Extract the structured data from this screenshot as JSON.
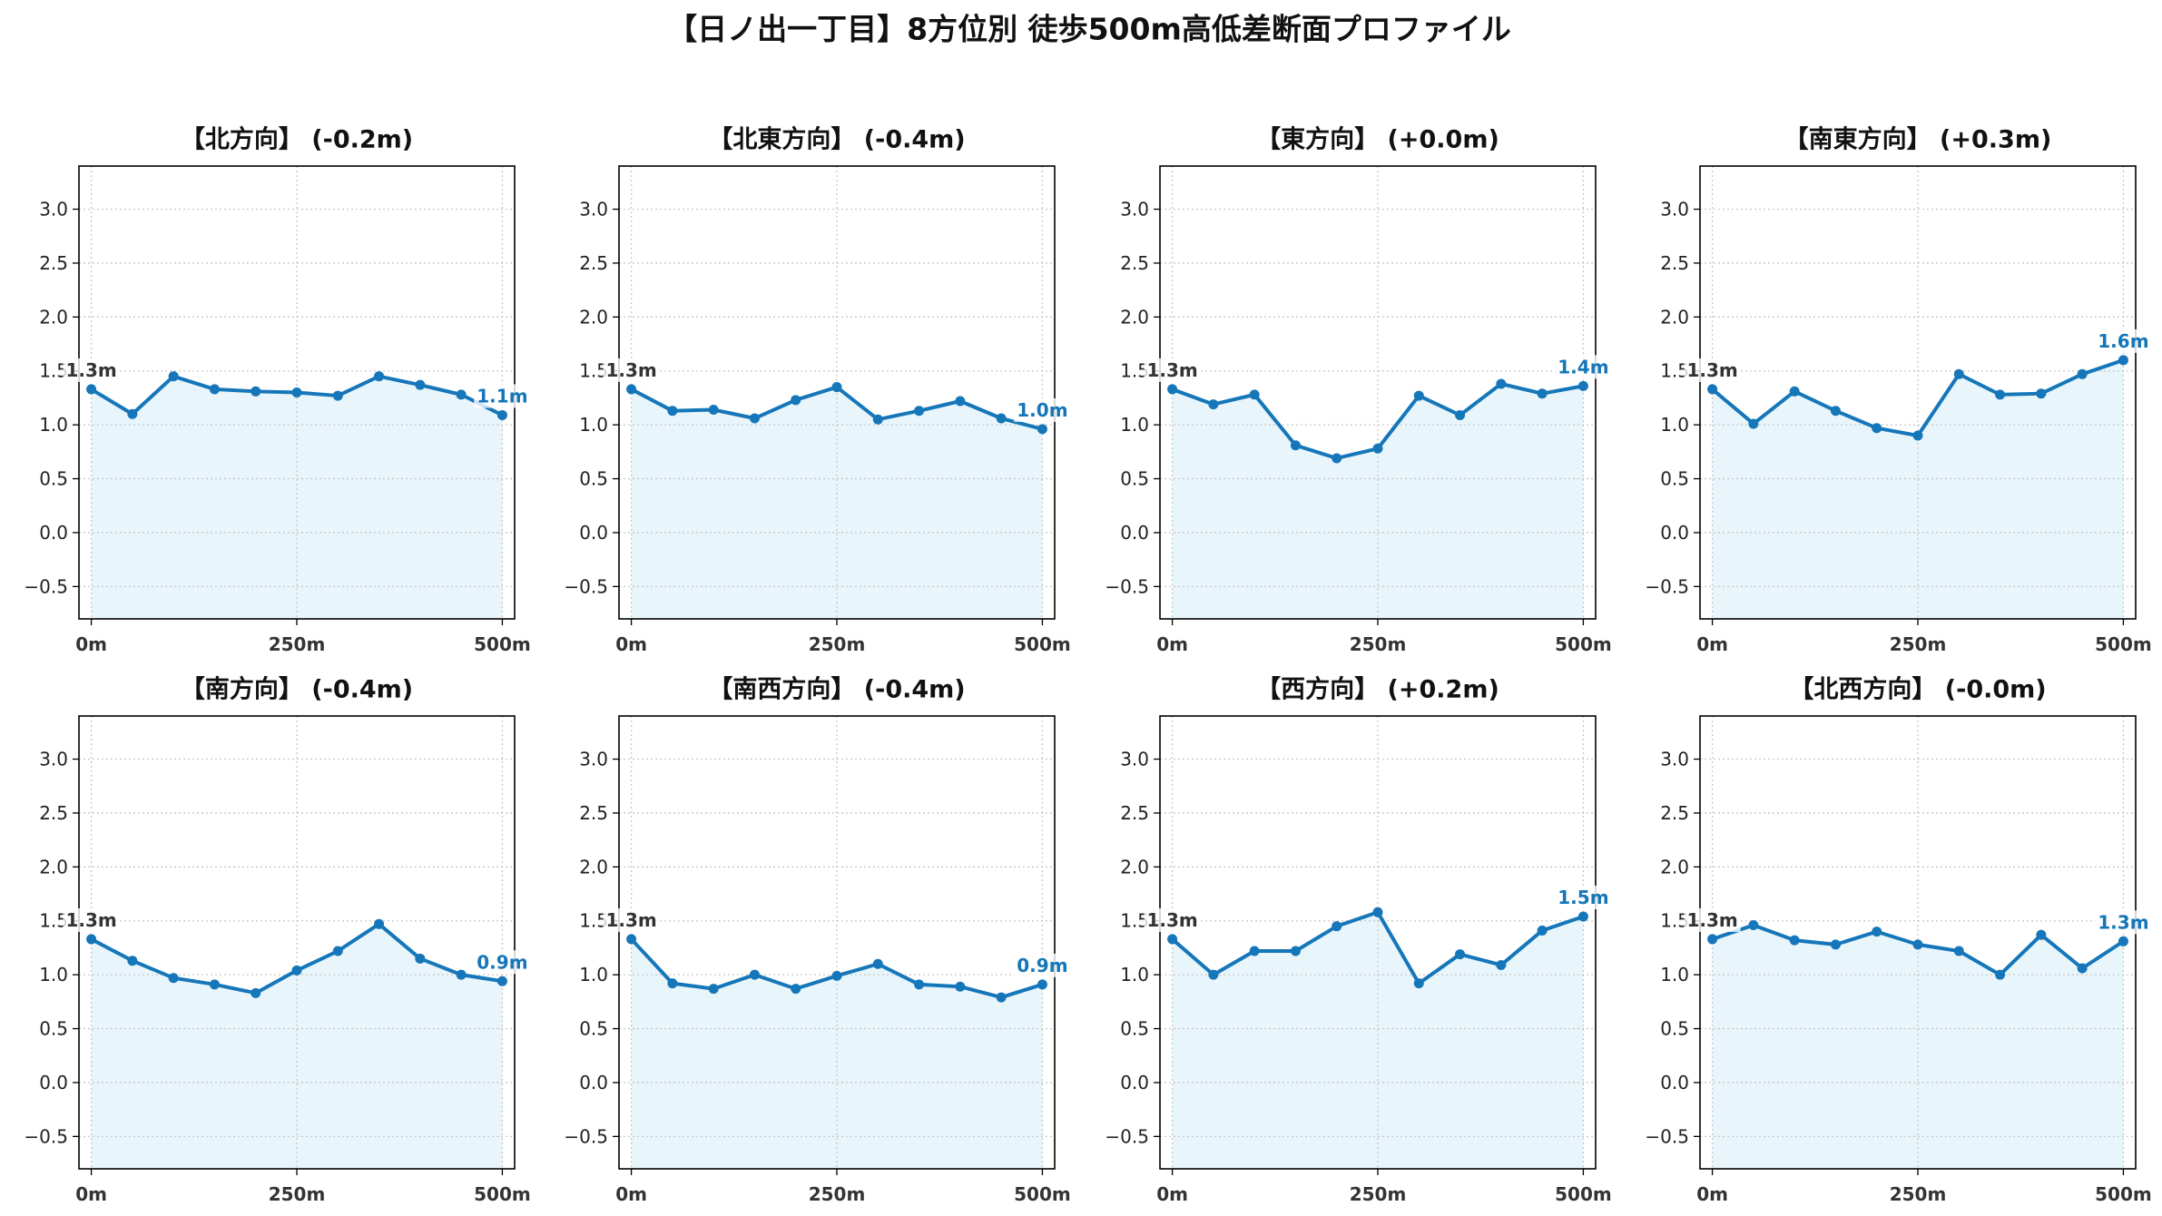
{
  "figure": {
    "title": "【日ノ出一丁目】8方位別 徒歩500m高低差断面プロファイル"
  },
  "colors": {
    "line": "#1576b9",
    "fill": "#e8f5fb",
    "start_label": "#333333",
    "end_label": "#1576b9",
    "grid": "#c8c8c8",
    "frame": "#000000"
  },
  "chart_data": [
    {
      "type": "line",
      "title": "【北方向】 (-0.2m)",
      "x": [
        0,
        50,
        100,
        150,
        200,
        250,
        300,
        350,
        400,
        450,
        500
      ],
      "y": [
        1.33,
        1.1,
        1.45,
        1.33,
        1.31,
        1.3,
        1.27,
        1.45,
        1.37,
        1.28,
        1.09
      ],
      "xlim": [
        -15,
        515
      ],
      "ylim": [
        -0.8,
        3.4
      ],
      "xticks": [
        0,
        250,
        500
      ],
      "xtick_labels": [
        "0m",
        "250m",
        "500m"
      ],
      "yticks": [
        -0.5,
        0,
        0.5,
        1,
        1.5,
        2,
        2.5,
        3
      ],
      "ytick_labels": [
        "−0.5",
        "0.0",
        "0.5",
        "1.0",
        "1.5",
        "2.0",
        "2.5",
        "3.0"
      ],
      "grid": true,
      "start_label": "1.3m",
      "end_label": "1.1m"
    },
    {
      "type": "line",
      "title": "【北東方向】 (-0.4m)",
      "x": [
        0,
        50,
        100,
        150,
        200,
        250,
        300,
        350,
        400,
        450,
        500
      ],
      "y": [
        1.33,
        1.13,
        1.14,
        1.06,
        1.23,
        1.35,
        1.05,
        1.13,
        1.22,
        1.06,
        0.96
      ],
      "xlim": [
        -15,
        515
      ],
      "ylim": [
        -0.8,
        3.4
      ],
      "xticks": [
        0,
        250,
        500
      ],
      "xtick_labels": [
        "0m",
        "250m",
        "500m"
      ],
      "yticks": [
        -0.5,
        0,
        0.5,
        1,
        1.5,
        2,
        2.5,
        3
      ],
      "ytick_labels": [
        "−0.5",
        "0.0",
        "0.5",
        "1.0",
        "1.5",
        "2.0",
        "2.5",
        "3.0"
      ],
      "grid": true,
      "start_label": "1.3m",
      "end_label": "1.0m"
    },
    {
      "type": "line",
      "title": "【東方向】 (+0.0m)",
      "x": [
        0,
        50,
        100,
        150,
        200,
        250,
        300,
        350,
        400,
        450,
        500
      ],
      "y": [
        1.33,
        1.19,
        1.28,
        0.81,
        0.69,
        0.78,
        1.27,
        1.09,
        1.38,
        1.29,
        1.36
      ],
      "xlim": [
        -15,
        515
      ],
      "ylim": [
        -0.8,
        3.4
      ],
      "xticks": [
        0,
        250,
        500
      ],
      "xtick_labels": [
        "0m",
        "250m",
        "500m"
      ],
      "yticks": [
        -0.5,
        0,
        0.5,
        1,
        1.5,
        2,
        2.5,
        3
      ],
      "ytick_labels": [
        "−0.5",
        "0.0",
        "0.5",
        "1.0",
        "1.5",
        "2.0",
        "2.5",
        "3.0"
      ],
      "grid": true,
      "start_label": "1.3m",
      "end_label": "1.4m"
    },
    {
      "type": "line",
      "title": "【南東方向】 (+0.3m)",
      "x": [
        0,
        50,
        100,
        150,
        200,
        250,
        300,
        350,
        400,
        450,
        500
      ],
      "y": [
        1.33,
        1.01,
        1.31,
        1.13,
        0.97,
        0.9,
        1.47,
        1.28,
        1.29,
        1.47,
        1.6
      ],
      "xlim": [
        -15,
        515
      ],
      "ylim": [
        -0.8,
        3.4
      ],
      "xticks": [
        0,
        250,
        500
      ],
      "xtick_labels": [
        "0m",
        "250m",
        "500m"
      ],
      "yticks": [
        -0.5,
        0,
        0.5,
        1,
        1.5,
        2,
        2.5,
        3
      ],
      "ytick_labels": [
        "−0.5",
        "0.0",
        "0.5",
        "1.0",
        "1.5",
        "2.0",
        "2.5",
        "3.0"
      ],
      "grid": true,
      "start_label": "1.3m",
      "end_label": "1.6m"
    },
    {
      "type": "line",
      "title": "【南方向】 (-0.4m)",
      "x": [
        0,
        50,
        100,
        150,
        200,
        250,
        300,
        350,
        400,
        450,
        500
      ],
      "y": [
        1.33,
        1.13,
        0.97,
        0.91,
        0.83,
        1.04,
        1.22,
        1.47,
        1.15,
        1.0,
        0.94
      ],
      "xlim": [
        -15,
        515
      ],
      "ylim": [
        -0.8,
        3.4
      ],
      "xticks": [
        0,
        250,
        500
      ],
      "xtick_labels": [
        "0m",
        "250m",
        "500m"
      ],
      "yticks": [
        -0.5,
        0,
        0.5,
        1,
        1.5,
        2,
        2.5,
        3
      ],
      "ytick_labels": [
        "−0.5",
        "0.0",
        "0.5",
        "1.0",
        "1.5",
        "2.0",
        "2.5",
        "3.0"
      ],
      "grid": true,
      "start_label": "1.3m",
      "end_label": "0.9m"
    },
    {
      "type": "line",
      "title": "【南西方向】 (-0.4m)",
      "x": [
        0,
        50,
        100,
        150,
        200,
        250,
        300,
        350,
        400,
        450,
        500
      ],
      "y": [
        1.33,
        0.92,
        0.87,
        1.0,
        0.87,
        0.99,
        1.1,
        0.91,
        0.89,
        0.79,
        0.91
      ],
      "xlim": [
        -15,
        515
      ],
      "ylim": [
        -0.8,
        3.4
      ],
      "xticks": [
        0,
        250,
        500
      ],
      "xtick_labels": [
        "0m",
        "250m",
        "500m"
      ],
      "yticks": [
        -0.5,
        0,
        0.5,
        1,
        1.5,
        2,
        2.5,
        3
      ],
      "ytick_labels": [
        "−0.5",
        "0.0",
        "0.5",
        "1.0",
        "1.5",
        "2.0",
        "2.5",
        "3.0"
      ],
      "grid": true,
      "start_label": "1.3m",
      "end_label": "0.9m"
    },
    {
      "type": "line",
      "title": "【西方向】 (+0.2m)",
      "x": [
        0,
        50,
        100,
        150,
        200,
        250,
        300,
        350,
        400,
        450,
        500
      ],
      "y": [
        1.33,
        1.0,
        1.22,
        1.22,
        1.45,
        1.58,
        0.92,
        1.19,
        1.09,
        1.41,
        1.54
      ],
      "xlim": [
        -15,
        515
      ],
      "ylim": [
        -0.8,
        3.4
      ],
      "xticks": [
        0,
        250,
        500
      ],
      "xtick_labels": [
        "0m",
        "250m",
        "500m"
      ],
      "yticks": [
        -0.5,
        0,
        0.5,
        1,
        1.5,
        2,
        2.5,
        3
      ],
      "ytick_labels": [
        "−0.5",
        "0.0",
        "0.5",
        "1.0",
        "1.5",
        "2.0",
        "2.5",
        "3.0"
      ],
      "grid": true,
      "start_label": "1.3m",
      "end_label": "1.5m"
    },
    {
      "type": "line",
      "title": "【北西方向】 (-0.0m)",
      "x": [
        0,
        50,
        100,
        150,
        200,
        250,
        300,
        350,
        400,
        450,
        500
      ],
      "y": [
        1.33,
        1.46,
        1.32,
        1.28,
        1.4,
        1.28,
        1.22,
        1.0,
        1.37,
        1.06,
        1.31
      ],
      "xlim": [
        -15,
        515
      ],
      "ylim": [
        -0.8,
        3.4
      ],
      "xticks": [
        0,
        250,
        500
      ],
      "xtick_labels": [
        "0m",
        "250m",
        "500m"
      ],
      "yticks": [
        -0.5,
        0,
        0.5,
        1,
        1.5,
        2,
        2.5,
        3
      ],
      "ytick_labels": [
        "−0.5",
        "0.0",
        "0.5",
        "1.0",
        "1.5",
        "2.0",
        "2.5",
        "3.0"
      ],
      "grid": true,
      "start_label": "1.3m",
      "end_label": "1.3m"
    }
  ]
}
